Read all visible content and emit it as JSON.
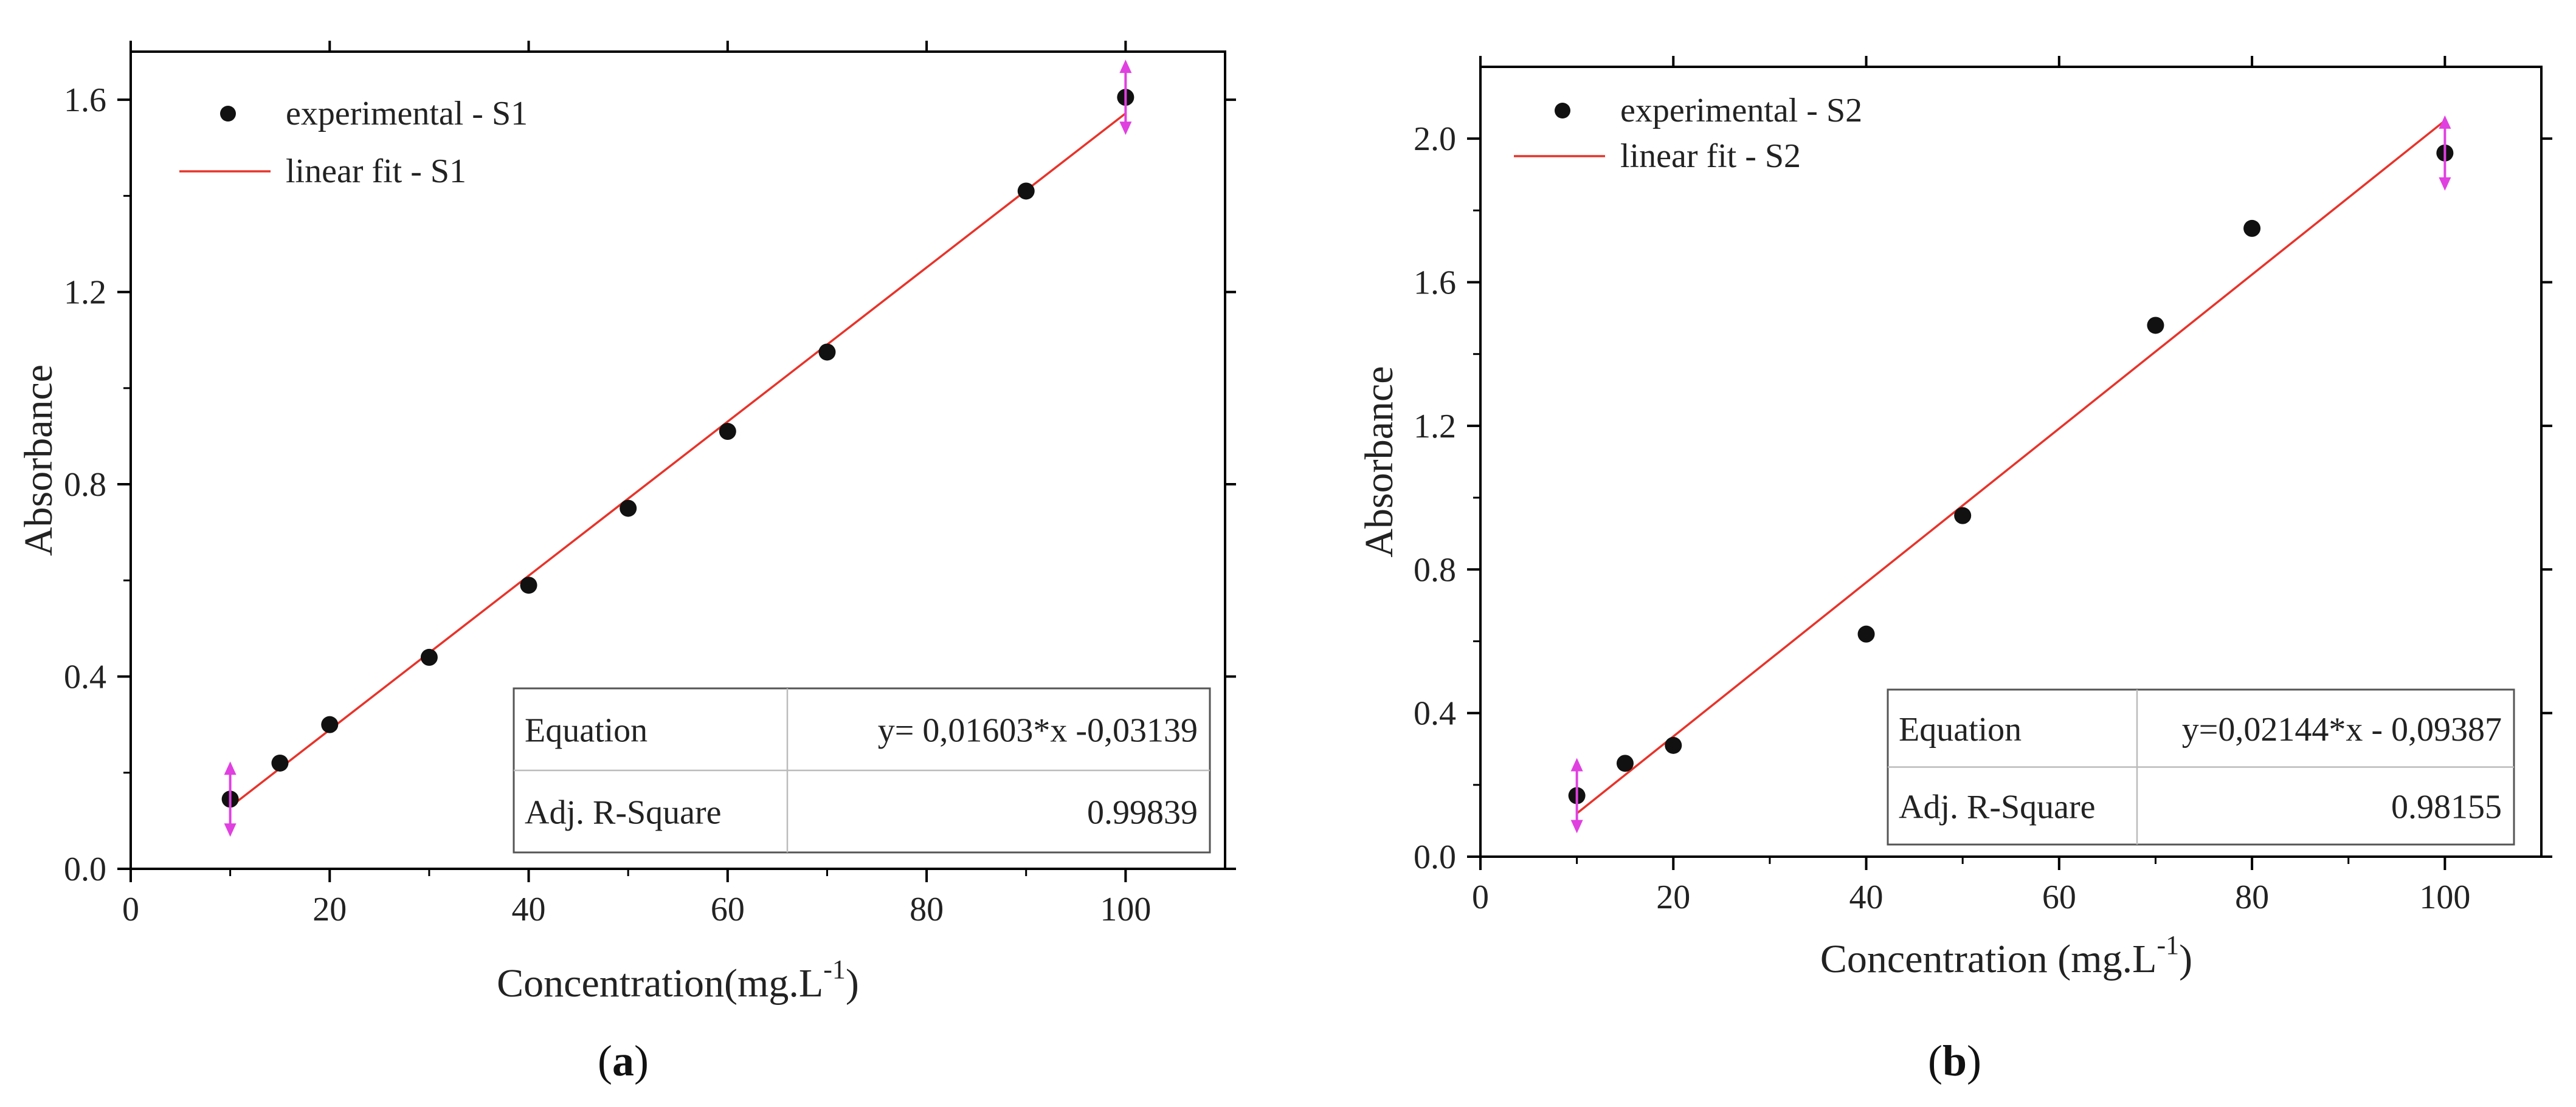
{
  "chart_data": [
    {
      "type": "scatter",
      "panel_label": "(a)",
      "panel_letter": "a",
      "xlabel": "Concentration(mg.L",
      "xlabel_superscript": "-1",
      "xlabel_suffix": ")",
      "ylabel": "Absorbance",
      "xlim": [
        0,
        110
      ],
      "ylim": [
        0,
        1.7
      ],
      "xticks": [
        0,
        20,
        40,
        60,
        80,
        100
      ],
      "xtick_labels": [
        "0",
        "20",
        "40",
        "60",
        "80",
        "100"
      ],
      "yticks": [
        0.0,
        0.4,
        0.8,
        1.2,
        1.6
      ],
      "ytick_labels": [
        "0.0",
        "0.4",
        "0.8",
        "1.2",
        "1.6"
      ],
      "legend": {
        "position": "top-left",
        "entries": [
          "experimental - S1",
          "linear fit - S1"
        ]
      },
      "series": [
        {
          "name": "experimental - S1",
          "kind": "scatter",
          "x": [
            10,
            15,
            20,
            30,
            40,
            50,
            60,
            70,
            90,
            100
          ],
          "y": [
            0.145,
            0.22,
            0.3,
            0.44,
            0.59,
            0.75,
            0.91,
            1.075,
            1.41,
            1.605
          ]
        },
        {
          "name": "linear fit - S1",
          "kind": "line",
          "slope": 0.01603,
          "intercept": -0.03139,
          "x_range": [
            10,
            100
          ]
        }
      ],
      "marked_points": [
        10,
        100
      ],
      "fit_table": {
        "position": "bottom-right",
        "rows": [
          [
            "Equation",
            "y= 0,01603*x -0,03139"
          ],
          [
            "Adj. R-Square",
            "0.99839"
          ]
        ]
      }
    },
    {
      "type": "scatter",
      "panel_label": "(b)",
      "panel_letter": "b",
      "xlabel": "Concentration (mg.L",
      "xlabel_superscript": "-1",
      "xlabel_suffix": ")",
      "ylabel": "Absorbance",
      "xlim": [
        0,
        110
      ],
      "ylim": [
        0,
        2.2
      ],
      "xticks": [
        0,
        20,
        40,
        60,
        80,
        100
      ],
      "xtick_labels": [
        "0",
        "20",
        "40",
        "60",
        "80",
        "100"
      ],
      "yticks": [
        0.0,
        0.4,
        0.8,
        1.2,
        1.6,
        2.0
      ],
      "ytick_labels": [
        "0.0",
        "0.4",
        "0.8",
        "1.2",
        "1.6",
        "2.0"
      ],
      "legend": {
        "position": "top-left",
        "entries": [
          "experimental - S2",
          "linear fit - S2"
        ]
      },
      "series": [
        {
          "name": "experimental - S2",
          "kind": "scatter",
          "x": [
            10,
            15,
            20,
            40,
            50,
            70,
            80,
            100
          ],
          "y": [
            0.17,
            0.26,
            0.31,
            0.62,
            0.95,
            1.48,
            1.75,
            1.96
          ]
        },
        {
          "name": "linear fit - S2",
          "kind": "line",
          "slope": 0.02144,
          "intercept": -0.09387,
          "x_range": [
            10,
            100
          ]
        }
      ],
      "marked_points": [
        10,
        100
      ],
      "fit_table": {
        "position": "bottom-right",
        "rows": [
          [
            "Equation",
            "y=0,02144*x - 0,09387"
          ],
          [
            "Adj. R-Square",
            "0.98155"
          ]
        ]
      }
    }
  ],
  "colors": {
    "axis": "#000000",
    "marker": "#111111",
    "fit_line": "#e8332a",
    "arrow": "#e040e0",
    "table_border": "#555555",
    "table_grid": "#bbbbbb"
  }
}
